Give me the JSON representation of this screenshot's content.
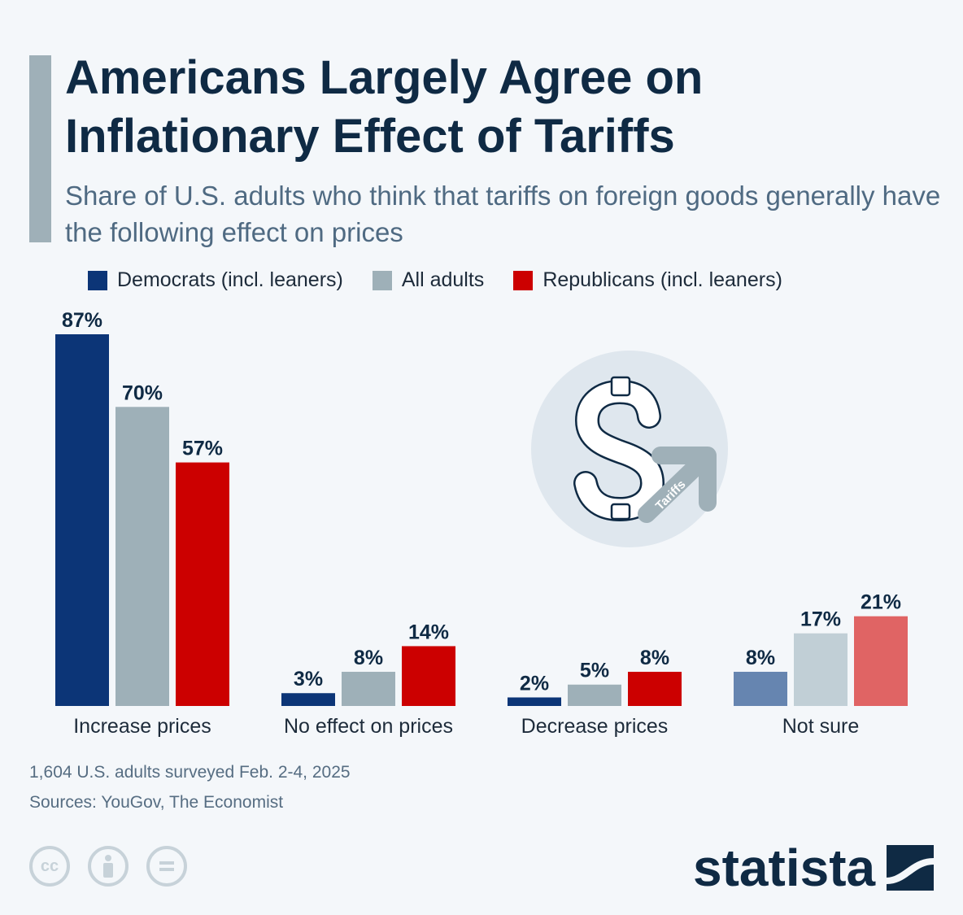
{
  "header": {
    "title": "Americans Largely Agree on Inflationary Effect of Tariffs",
    "subtitle": "Share of U.S. adults who think that tariffs on foreign goods generally have the following effect on prices"
  },
  "chart_data": {
    "type": "bar",
    "categories": [
      "Increase prices",
      "No effect on prices",
      "Decrease prices",
      "Not sure"
    ],
    "series": [
      {
        "name": "Democrats (incl. leaners)",
        "values": [
          87,
          3,
          2,
          8
        ],
        "color": "#0c3577",
        "not_sure_color": "#6685b0"
      },
      {
        "name": "All adults",
        "values": [
          70,
          8,
          5,
          17
        ],
        "color": "#9eb0b8",
        "not_sure_color": "#c1cfd6"
      },
      {
        "name": "Republicans (incl. leaners)",
        "values": [
          57,
          14,
          8,
          21
        ],
        "color": "#cc0000",
        "not_sure_color": "#e06464"
      }
    ],
    "value_suffix": "%",
    "legend_position": "top",
    "grid": false,
    "ylim": [
      0,
      87
    ]
  },
  "icon": {
    "name": "dollar-with-rising-arrow-icon",
    "label": "Tariffs"
  },
  "footer": {
    "note": "1,604 U.S. adults surveyed Feb. 2-4, 2025",
    "sources": "Sources: YouGov, The Economist",
    "license_icons": [
      "cc",
      "by",
      "nd"
    ],
    "license_labels": [
      "cc",
      "",
      ""
    ],
    "brand": "statista"
  }
}
